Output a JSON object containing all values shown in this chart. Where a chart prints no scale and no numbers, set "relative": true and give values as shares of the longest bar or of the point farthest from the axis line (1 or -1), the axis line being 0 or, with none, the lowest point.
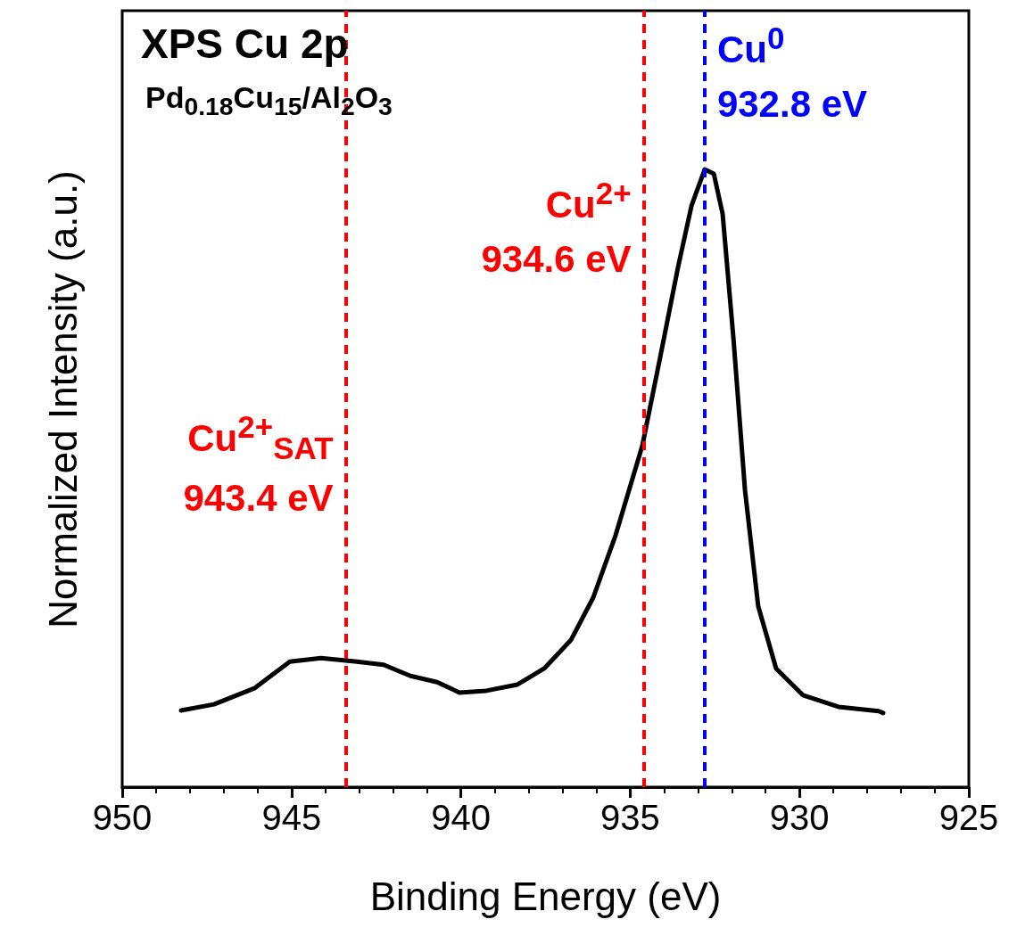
{
  "chart_data": {
    "type": "line",
    "title": "XPS Cu 2p",
    "subtitle": "Pd$_{0.18}$Cu$_{15}$/Al$_{2}$O$_{3}$",
    "xlabel": "Binding Energy (eV)",
    "ylabel": "Normalized Intensity (a.u.)",
    "relative": true,
    "xlim": [
      950,
      925
    ],
    "xticks": [
      950,
      945,
      940,
      935,
      930,
      925
    ],
    "grid": false,
    "marker": "none",
    "line_style": "solid",
    "series": [
      {
        "color": "#000000",
        "x": [
          948.26,
          947.29,
          946.1,
          945.05,
          944.13,
          943.07,
          942.28,
          941.49,
          940.7,
          940.04,
          939.25,
          938.33,
          937.54,
          936.75,
          936.09,
          935.43,
          934.64,
          934.11,
          933.59,
          933.19,
          932.8,
          932.53,
          932.27,
          931.95,
          931.61,
          931.22,
          930.69,
          929.9,
          928.85,
          927.66,
          927.53
        ],
        "values": [
          0.124,
          0.134,
          0.16,
          0.203,
          0.209,
          0.203,
          0.198,
          0.18,
          0.17,
          0.153,
          0.156,
          0.166,
          0.192,
          0.238,
          0.307,
          0.408,
          0.553,
          0.697,
          0.841,
          0.941,
          1.0,
          0.993,
          0.928,
          0.726,
          0.481,
          0.293,
          0.192,
          0.149,
          0.13,
          0.123,
          0.12
        ]
      }
    ],
    "ref_lines": [
      {
        "axis": "x",
        "value": 943.4,
        "label": "Cu$^{2+}$$_{SAT}$\n943.4 eV",
        "color": "#ff0000",
        "line_style": "dashed"
      },
      {
        "axis": "x",
        "value": 934.6,
        "label": "Cu$^{2+}$\n934.6 eV",
        "color": "#ff0000",
        "line_style": "dashed"
      },
      {
        "axis": "x",
        "value": 932.8,
        "label": "Cu$^{0}$\n932.8 eV",
        "color": "#0000ff",
        "line_style": "dashed"
      }
    ]
  }
}
